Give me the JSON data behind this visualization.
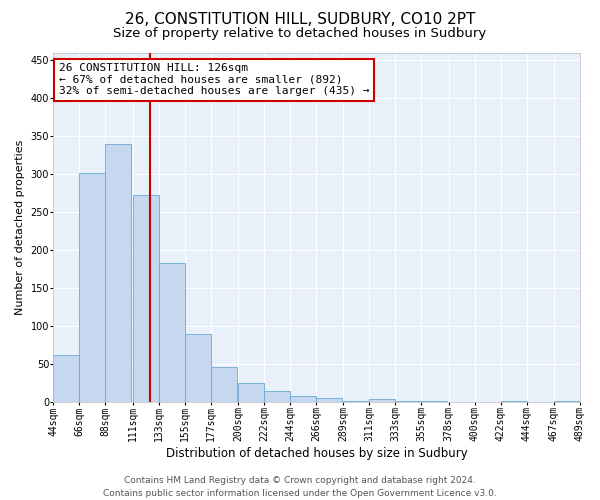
{
  "title": "26, CONSTITUTION HILL, SUDBURY, CO10 2PT",
  "subtitle": "Size of property relative to detached houses in Sudbury",
  "xlabel": "Distribution of detached houses by size in Sudbury",
  "ylabel": "Number of detached properties",
  "bar_color": "#c5d8f0",
  "bar_edge_color": "#6aaad4",
  "background_color": "#e8f0fa",
  "grid_color": "#ffffff",
  "vline_x": 126,
  "vline_color": "#cc0000",
  "annotation_text": "26 CONSTITUTION HILL: 126sqm\n← 67% of detached houses are smaller (892)\n32% of semi-detached houses are larger (435) →",
  "annotation_box_color": "#ffffff",
  "annotation_box_edge": "#cc0000",
  "bins_left": [
    44,
    66,
    88,
    111,
    133,
    155,
    177,
    200,
    222,
    244,
    266,
    289,
    311,
    333,
    355,
    378,
    400,
    422,
    444,
    467
  ],
  "bin_width": 22,
  "bar_heights": [
    62,
    301,
    340,
    273,
    183,
    90,
    46,
    25,
    15,
    8,
    5,
    2,
    4,
    1,
    1,
    0,
    0,
    1,
    0,
    1
  ],
  "ylim": [
    0,
    460
  ],
  "yticks": [
    0,
    50,
    100,
    150,
    200,
    250,
    300,
    350,
    400,
    450
  ],
  "tick_positions": [
    44,
    66,
    88,
    111,
    133,
    155,
    177,
    200,
    222,
    244,
    266,
    289,
    311,
    333,
    355,
    378,
    400,
    422,
    444,
    467,
    489
  ],
  "footer_text": "Contains HM Land Registry data © Crown copyright and database right 2024.\nContains public sector information licensed under the Open Government Licence v3.0.",
  "title_fontsize": 11,
  "subtitle_fontsize": 9.5,
  "xlabel_fontsize": 8.5,
  "ylabel_fontsize": 8,
  "tick_fontsize": 7,
  "annotation_fontsize": 8,
  "footer_fontsize": 6.5
}
